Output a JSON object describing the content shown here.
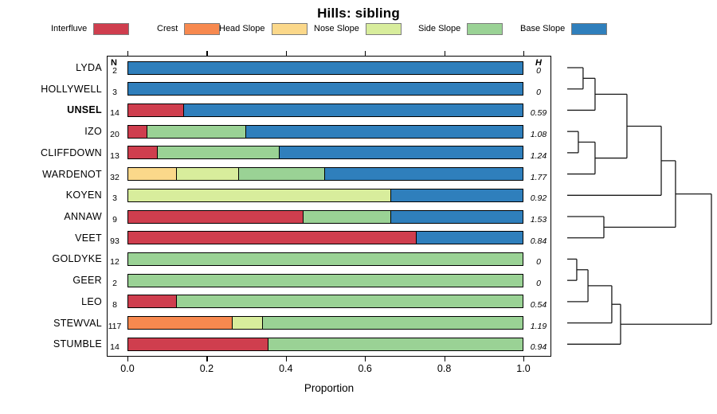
{
  "title": "Hills: sibling",
  "columns": {
    "n_header": "N",
    "h_header": "H"
  },
  "axis": {
    "ticks": [
      "0.0",
      "0.2",
      "0.4",
      "0.6",
      "0.8",
      "1.0"
    ],
    "xlabel": "Proportion"
  },
  "legend": {
    "items": [
      {
        "label": "Interfluve",
        "color": "#CF3E4E"
      },
      {
        "label": "Crest",
        "color": "#F7894F"
      },
      {
        "label": "Head Slope",
        "color": "#FBD88A"
      },
      {
        "label": "Nose Slope",
        "color": "#D8ED9C"
      },
      {
        "label": "Side Slope",
        "color": "#9AD295"
      },
      {
        "label": "Base Slope",
        "color": "#2F7FBC"
      }
    ]
  },
  "chart_data": {
    "type": "bar",
    "stacked": true,
    "orientation": "horizontal",
    "title": "Hills: sibling",
    "xlabel": "Proportion",
    "xlim": [
      0,
      1
    ],
    "series_names": [
      "Interfluve",
      "Crest",
      "Head Slope",
      "Nose Slope",
      "Side Slope",
      "Base Slope"
    ],
    "rows": [
      {
        "label": "LYDA",
        "bold": false,
        "n": "2",
        "h": "0",
        "segments": [
          [
            "Base Slope",
            1.0
          ]
        ]
      },
      {
        "label": "HOLLYWELL",
        "bold": false,
        "n": "3",
        "h": "0",
        "segments": [
          [
            "Base Slope",
            1.0
          ]
        ]
      },
      {
        "label": "UNSEL",
        "bold": true,
        "n": "14",
        "h": "0.59",
        "segments": [
          [
            "Interfluve",
            0.143
          ],
          [
            "Base Slope",
            0.857
          ]
        ]
      },
      {
        "label": "IZO",
        "bold": false,
        "n": "20",
        "h": "1.08",
        "segments": [
          [
            "Interfluve",
            0.05
          ],
          [
            "Side Slope",
            0.25
          ],
          [
            "Base Slope",
            0.7
          ]
        ]
      },
      {
        "label": "CLIFFDOWN",
        "bold": false,
        "n": "13",
        "h": "1.24",
        "segments": [
          [
            "Interfluve",
            0.077
          ],
          [
            "Side Slope",
            0.308
          ],
          [
            "Base Slope",
            0.615
          ]
        ]
      },
      {
        "label": "WARDENOT",
        "bold": false,
        "n": "32",
        "h": "1.77",
        "segments": [
          [
            "Head Slope",
            0.125
          ],
          [
            "Nose Slope",
            0.156
          ],
          [
            "Side Slope",
            0.219
          ],
          [
            "Base Slope",
            0.5
          ]
        ]
      },
      {
        "label": "KOYEN",
        "bold": false,
        "n": "3",
        "h": "0.92",
        "segments": [
          [
            "Nose Slope",
            0.667
          ],
          [
            "Base Slope",
            0.333
          ]
        ]
      },
      {
        "label": "ANNAW",
        "bold": false,
        "n": "9",
        "h": "1.53",
        "segments": [
          [
            "Interfluve",
            0.444
          ],
          [
            "Side Slope",
            0.222
          ],
          [
            "Base Slope",
            0.334
          ]
        ]
      },
      {
        "label": "VEET",
        "bold": false,
        "n": "93",
        "h": "0.84",
        "segments": [
          [
            "Interfluve",
            0.731
          ],
          [
            "Base Slope",
            0.269
          ]
        ]
      },
      {
        "label": "GOLDYKE",
        "bold": false,
        "n": "12",
        "h": "0",
        "segments": [
          [
            "Side Slope",
            1.0
          ]
        ]
      },
      {
        "label": "GEER",
        "bold": false,
        "n": "2",
        "h": "0",
        "segments": [
          [
            "Side Slope",
            1.0
          ]
        ]
      },
      {
        "label": "LEO",
        "bold": false,
        "n": "8",
        "h": "0.54",
        "segments": [
          [
            "Interfluve",
            0.125
          ],
          [
            "Side Slope",
            0.875
          ]
        ]
      },
      {
        "label": "STEWVAL",
        "bold": false,
        "n": "117",
        "h": "1.19",
        "segments": [
          [
            "Crest",
            0.265
          ],
          [
            "Nose Slope",
            0.077
          ],
          [
            "Side Slope",
            0.658
          ]
        ]
      },
      {
        "label": "STUMBLE",
        "bold": false,
        "n": "14",
        "h": "0.94",
        "segments": [
          [
            "Interfluve",
            0.357
          ],
          [
            "Side Slope",
            0.643
          ]
        ]
      }
    ],
    "dendrogram": {
      "merges": [
        {
          "id": "m1",
          "a": "LYDA",
          "b": "HOLLYWELL",
          "height": 0.11
        },
        {
          "id": "m2",
          "a": "m1",
          "b": "UNSEL",
          "height": 0.193
        },
        {
          "id": "m3",
          "a": "IZO",
          "b": "CLIFFDOWN",
          "height": 0.077
        },
        {
          "id": "m4",
          "a": "m3",
          "b": "WARDENOT",
          "height": 0.193
        },
        {
          "id": "m5",
          "a": "m2",
          "b": "m4",
          "height": 0.414
        },
        {
          "id": "m6",
          "a": "m5",
          "b": "KOYEN",
          "height": 0.652
        },
        {
          "id": "m7",
          "a": "ANNAW",
          "b": "VEET",
          "height": 0.254
        },
        {
          "id": "m8",
          "a": "m6",
          "b": "m7",
          "height": 0.751
        },
        {
          "id": "m9",
          "a": "GOLDYKE",
          "b": "GEER",
          "height": 0.066
        },
        {
          "id": "m10",
          "a": "m9",
          "b": "LEO",
          "height": 0.144
        },
        {
          "id": "m11",
          "a": "m10",
          "b": "STEWVAL",
          "height": 0.309
        },
        {
          "id": "m12",
          "a": "m11",
          "b": "STUMBLE",
          "height": 0.37
        },
        {
          "id": "m13",
          "a": "m8",
          "b": "m12",
          "height": 1.0
        }
      ]
    }
  }
}
